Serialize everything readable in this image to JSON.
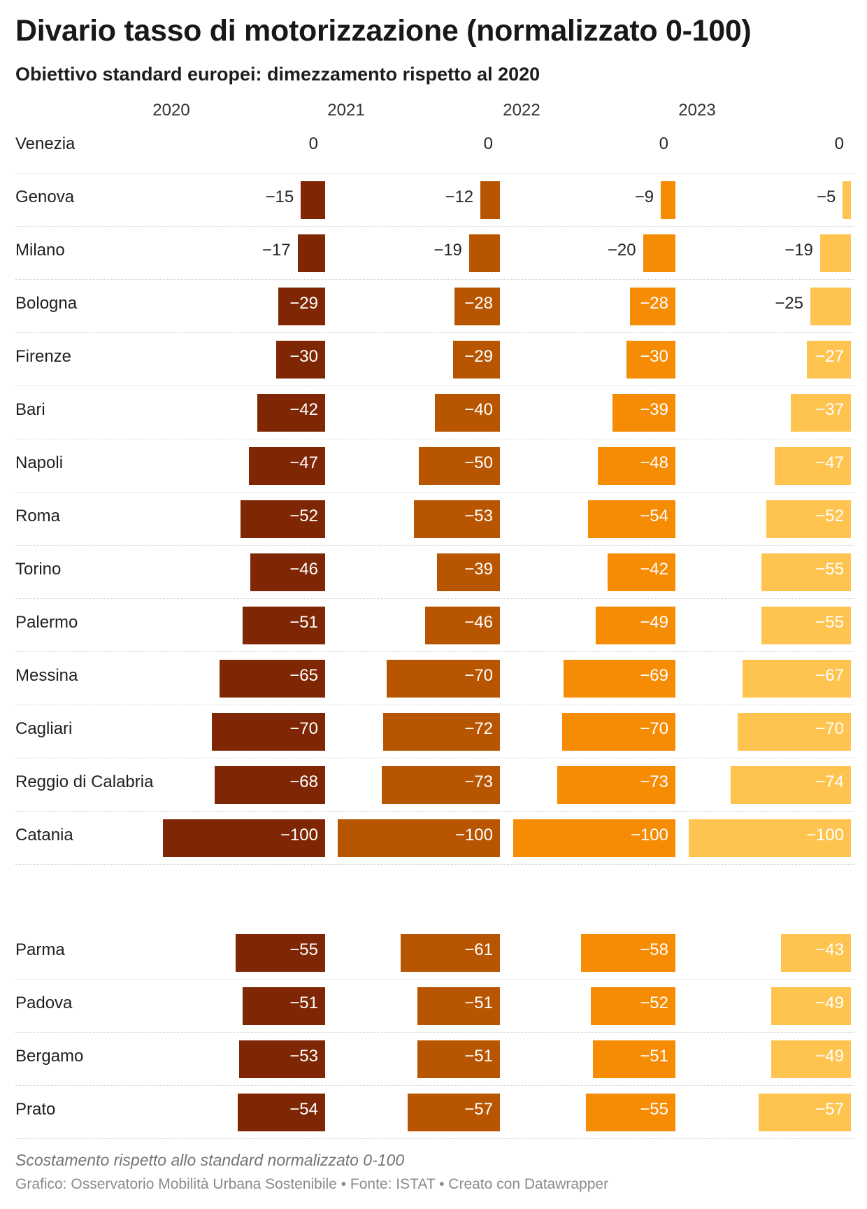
{
  "title": "Divario tasso di motorizzazione (normalizzato 0-100)",
  "subtitle": "Obiettivo standard europei: dimezzamento rispetto al 2020",
  "note": "Scostamento rispetto allo standard normalizzato 0-100",
  "credit": "Grafico: Osservatorio Mobilità Urbana Sostenibile • Fonte: ISTAT • Creato con Datawrapper",
  "colors": {
    "2020": "#7f2704",
    "2021": "#b85500",
    "2022": "#f68b04",
    "2023": "#fec44f"
  },
  "chart_data": {
    "type": "bar",
    "orientation": "horizontal",
    "title": "Divario tasso di motorizzazione (normalizzato 0-100)",
    "subtitle": "Obiettivo standard europei: dimezzamento rispetto al 2020",
    "columns": [
      "2020",
      "2021",
      "2022",
      "2023"
    ],
    "xlim": [
      -100,
      0
    ],
    "groups": [
      {
        "rows": [
          {
            "label": "Venezia",
            "values": [
              0,
              0,
              0,
              0
            ]
          },
          {
            "label": "Genova",
            "values": [
              -15,
              -12,
              -9,
              -5
            ]
          },
          {
            "label": "Milano",
            "values": [
              -17,
              -19,
              -20,
              -19
            ]
          },
          {
            "label": "Bologna",
            "values": [
              -29,
              -28,
              -28,
              -25
            ]
          },
          {
            "label": "Firenze",
            "values": [
              -30,
              -29,
              -30,
              -27
            ]
          },
          {
            "label": "Bari",
            "values": [
              -42,
              -40,
              -39,
              -37
            ]
          },
          {
            "label": "Napoli",
            "values": [
              -47,
              -50,
              -48,
              -47
            ]
          },
          {
            "label": "Roma",
            "values": [
              -52,
              -53,
              -54,
              -52
            ]
          },
          {
            "label": "Torino",
            "values": [
              -46,
              -39,
              -42,
              -55
            ]
          },
          {
            "label": "Palermo",
            "values": [
              -51,
              -46,
              -49,
              -55
            ]
          },
          {
            "label": "Messina",
            "values": [
              -65,
              -70,
              -69,
              -67
            ]
          },
          {
            "label": "Cagliari",
            "values": [
              -70,
              -72,
              -70,
              -70
            ]
          },
          {
            "label": "Reggio di Calabria",
            "values": [
              -68,
              -73,
              -73,
              -74
            ]
          },
          {
            "label": "Catania",
            "values": [
              -100,
              -100,
              -100,
              -100
            ]
          }
        ]
      },
      {
        "rows": [
          {
            "label": "Parma",
            "values": [
              -55,
              -61,
              -58,
              -43
            ]
          },
          {
            "label": "Padova",
            "values": [
              -51,
              -51,
              -52,
              -49
            ]
          },
          {
            "label": "Bergamo",
            "values": [
              -53,
              -51,
              -51,
              -49
            ]
          },
          {
            "label": "Prato",
            "values": [
              -54,
              -57,
              -55,
              -57
            ]
          }
        ]
      }
    ]
  }
}
